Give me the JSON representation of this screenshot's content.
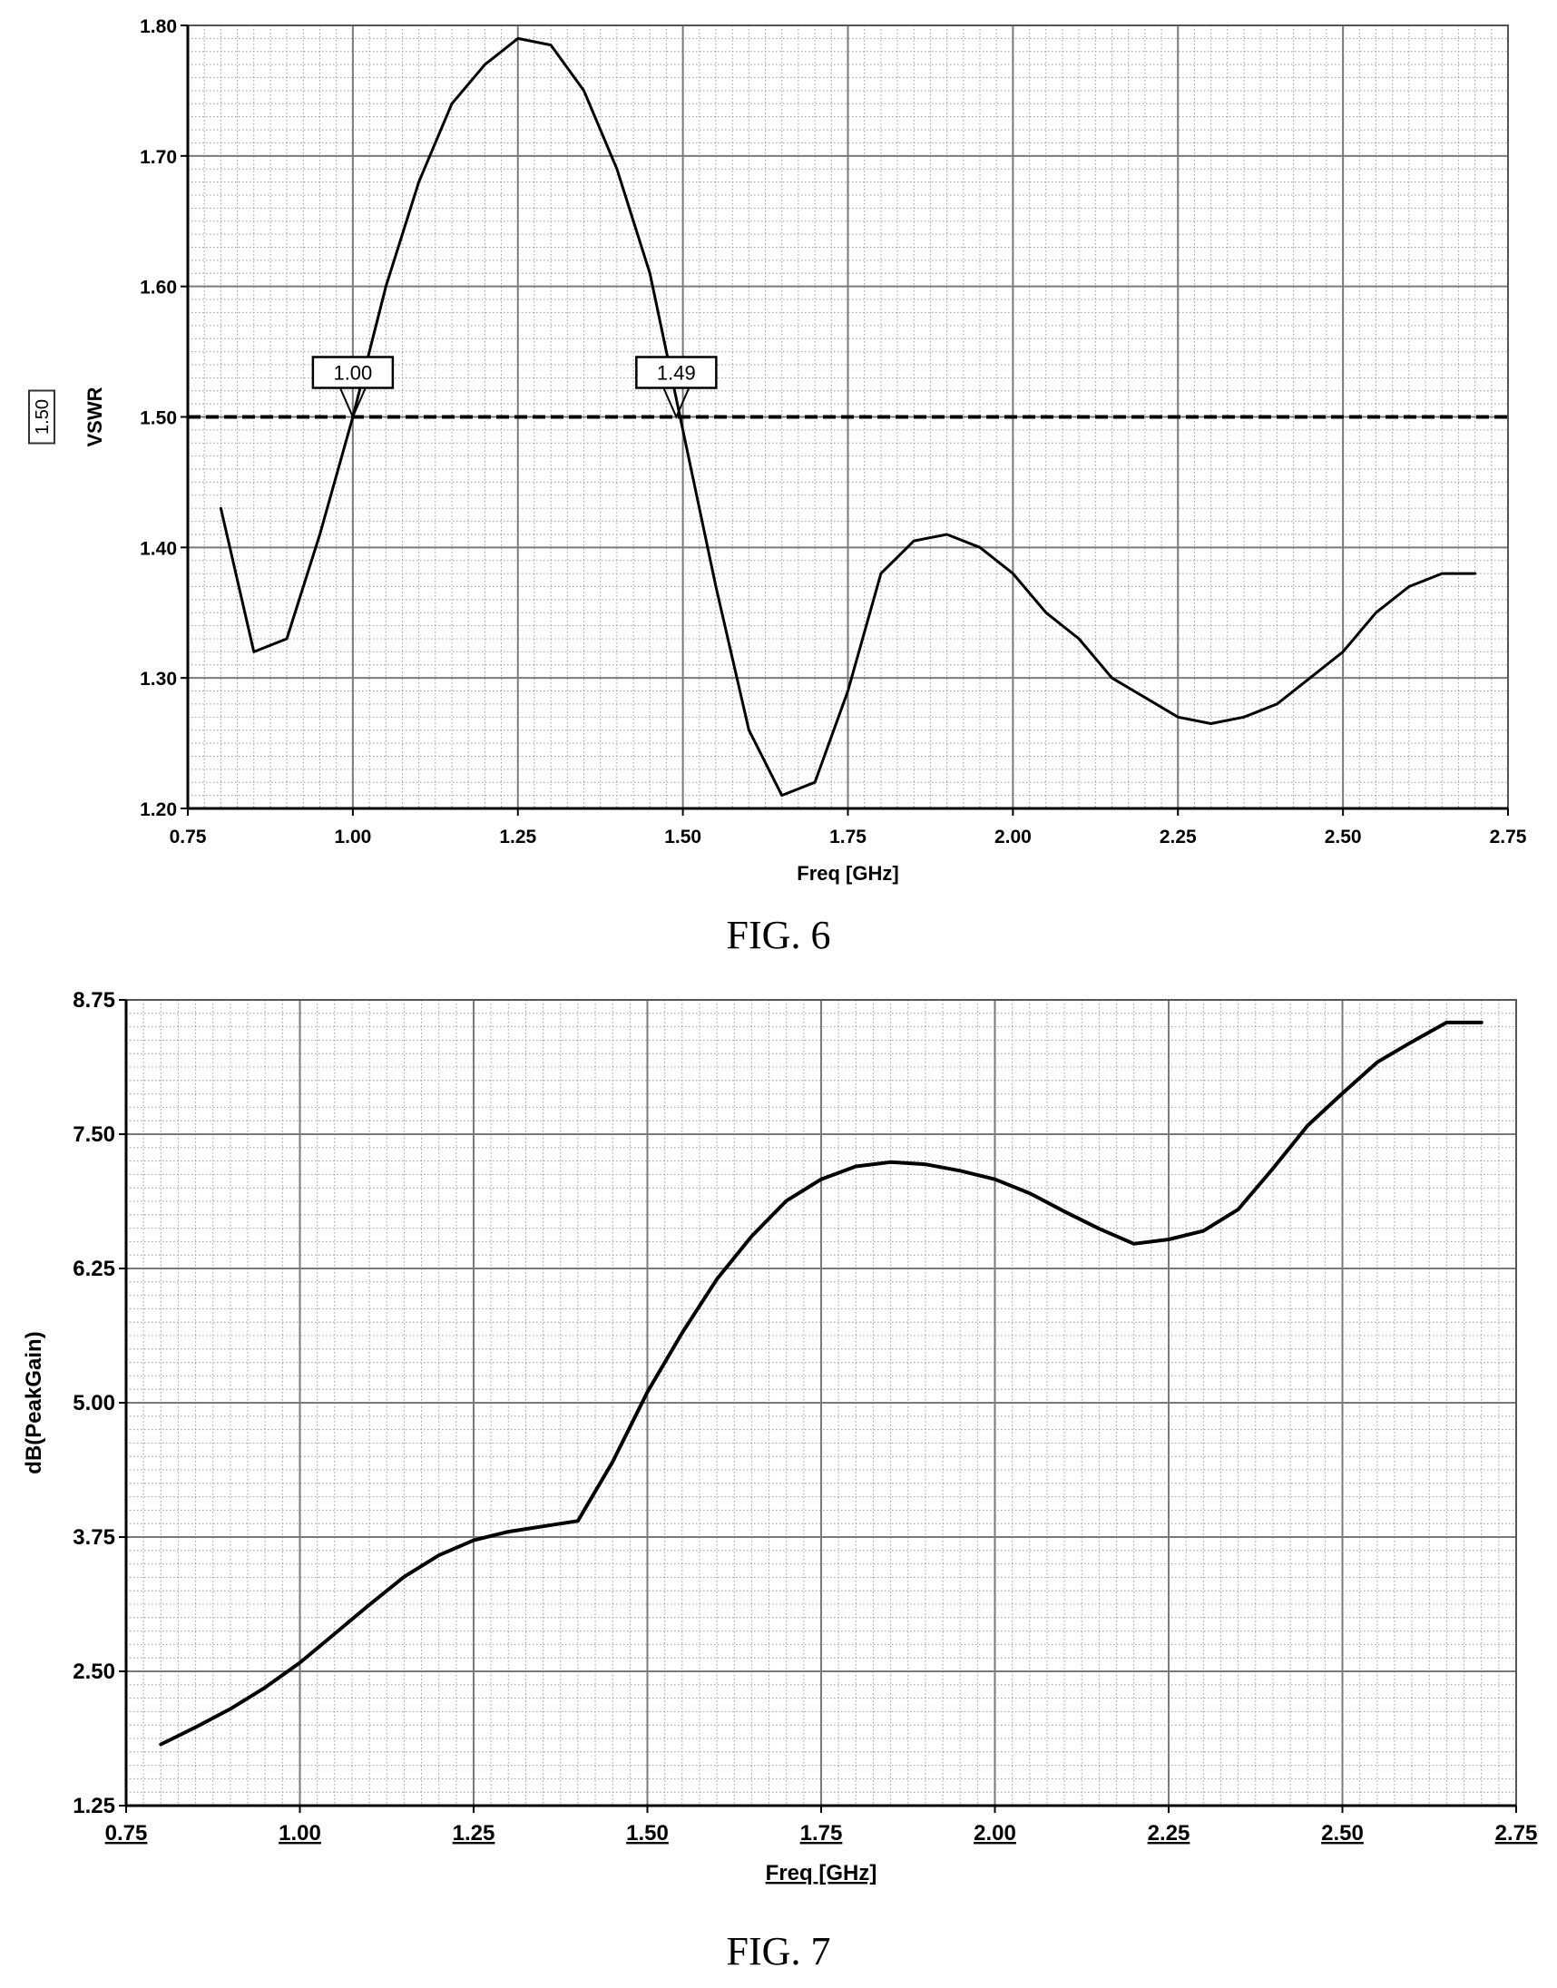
{
  "chart_data": [
    {
      "type": "line",
      "caption": "FIG. 6",
      "xlabel": "Freq [GHz]",
      "ylabel": "VSWR",
      "xlim": [
        0.75,
        2.75
      ],
      "ylim": [
        1.2,
        1.8
      ],
      "x_ticks": [
        "0.75",
        "1.00",
        "1.25",
        "1.50",
        "1.75",
        "2.00",
        "2.25",
        "2.50",
        "2.75"
      ],
      "y_ticks": [
        "1.20",
        "1.30",
        "1.40",
        "1.50",
        "1.60",
        "1.70",
        "1.80"
      ],
      "grid": true,
      "series": [
        {
          "x": [
            0.8,
            0.85,
            0.9,
            0.95,
            1.0,
            1.05,
            1.1,
            1.15,
            1.2,
            1.25,
            1.3,
            1.35,
            1.4,
            1.45,
            1.5,
            1.55,
            1.6,
            1.65,
            1.7,
            1.75,
            1.8,
            1.85,
            1.9,
            1.95,
            2.0,
            2.05,
            2.1,
            2.15,
            2.2,
            2.25,
            2.3,
            2.35,
            2.4,
            2.45,
            2.5,
            2.55,
            2.6,
            2.65,
            2.7
          ],
          "y": [
            1.43,
            1.32,
            1.33,
            1.41,
            1.5,
            1.6,
            1.68,
            1.74,
            1.77,
            1.79,
            1.785,
            1.75,
            1.69,
            1.61,
            1.49,
            1.37,
            1.26,
            1.21,
            1.22,
            1.29,
            1.38,
            1.405,
            1.41,
            1.4,
            1.38,
            1.35,
            1.33,
            1.3,
            1.285,
            1.27,
            1.265,
            1.27,
            1.28,
            1.3,
            1.32,
            1.35,
            1.37,
            1.38,
            1.38
          ]
        }
      ],
      "reference_line": {
        "y": 1.5,
        "label": "1.50",
        "style": "dashed"
      },
      "markers": [
        {
          "x": 1.0,
          "y": 1.5,
          "label": "1.00"
        },
        {
          "x": 1.49,
          "y": 1.5,
          "label": "1.49"
        }
      ]
    },
    {
      "type": "line",
      "caption": "FIG. 7",
      "xlabel": "Freq [GHz]",
      "ylabel": "dB(PeakGain)",
      "xlim": [
        0.75,
        2.75
      ],
      "ylim": [
        1.25,
        8.75
      ],
      "x_ticks": [
        "0.75",
        "1.00",
        "1.25",
        "1.50",
        "1.75",
        "2.00",
        "2.25",
        "2.50",
        "2.75"
      ],
      "y_ticks": [
        "1.25",
        "2.50",
        "3.75",
        "5.00",
        "6.25",
        "7.50",
        "8.75"
      ],
      "grid": true,
      "series": [
        {
          "x": [
            0.8,
            0.85,
            0.9,
            0.95,
            1.0,
            1.05,
            1.1,
            1.15,
            1.2,
            1.25,
            1.3,
            1.35,
            1.4,
            1.45,
            1.5,
            1.55,
            1.6,
            1.65,
            1.7,
            1.75,
            1.8,
            1.85,
            1.9,
            1.95,
            2.0,
            2.05,
            2.1,
            2.15,
            2.2,
            2.25,
            2.3,
            2.35,
            2.4,
            2.45,
            2.5,
            2.55,
            2.6,
            2.65,
            2.7
          ],
          "y": [
            1.82,
            1.98,
            2.15,
            2.35,
            2.58,
            2.85,
            3.12,
            3.38,
            3.58,
            3.72,
            3.8,
            3.85,
            3.9,
            4.45,
            5.1,
            5.65,
            6.15,
            6.55,
            6.88,
            7.08,
            7.2,
            7.24,
            7.22,
            7.16,
            7.08,
            6.95,
            6.78,
            6.62,
            6.48,
            6.52,
            6.6,
            6.8,
            7.18,
            7.58,
            7.88,
            8.17,
            8.36,
            8.54,
            8.54
          ]
        }
      ]
    }
  ]
}
